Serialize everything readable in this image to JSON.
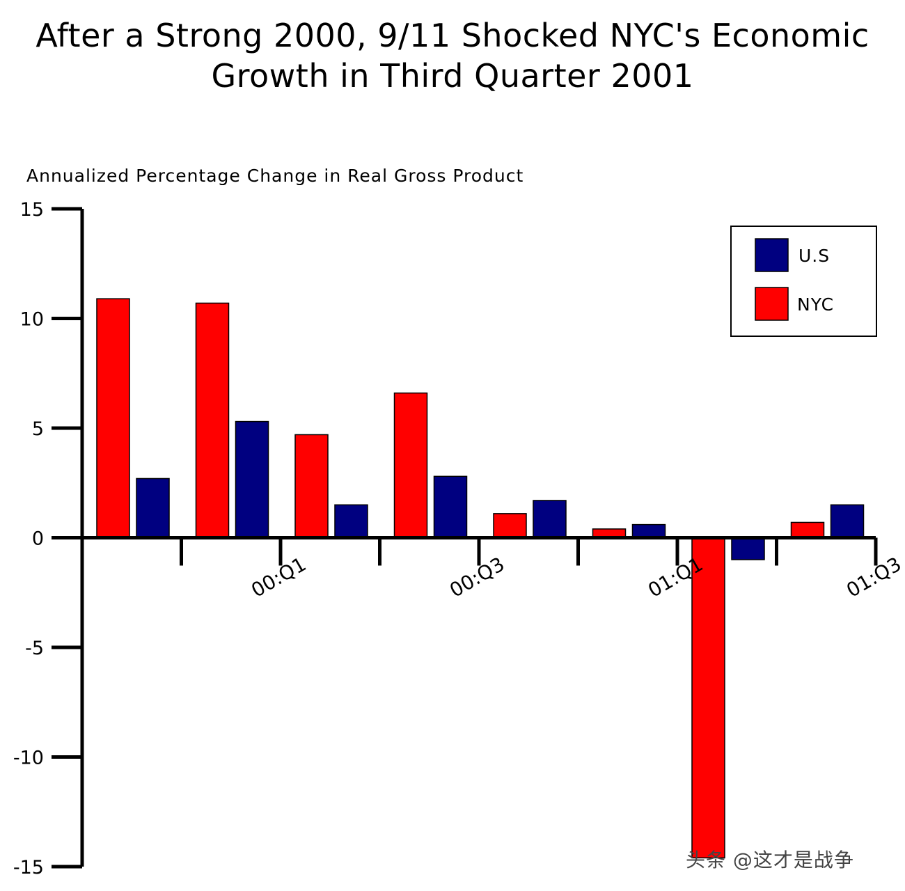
{
  "chart_data": {
    "type": "bar",
    "title": "After a Strong 2000, 9/11 Shocked NYC's Economic Growth in Third Quarter 2001",
    "title_lines": [
      "After a Strong 2000, 9/11 Shocked NYC's Economic",
      "Growth in Third Quarter 2001"
    ],
    "ylabel": "Annualized Percentage Change in Real Gross Product",
    "xlabel": "",
    "ylim": [
      -15,
      15
    ],
    "yticks": [
      15,
      10,
      5,
      0,
      -5,
      -10,
      -15
    ],
    "categories": [
      "",
      "00:Q1",
      "",
      "00:Q3",
      "",
      "01:Q1",
      "",
      "01:Q3"
    ],
    "tick_labels": [
      "00:Q1",
      "00:Q3",
      "01:Q1",
      "01:Q3"
    ],
    "series": [
      {
        "name": "NYC",
        "color": "#ff0000",
        "values": [
          10.9,
          10.7,
          4.7,
          6.6,
          1.1,
          0.4,
          -14.6,
          0.7
        ]
      },
      {
        "name": "U.S",
        "color": "#000080",
        "values": [
          2.7,
          5.3,
          1.5,
          2.8,
          1.7,
          0.6,
          -1.0,
          1.5
        ]
      }
    ],
    "legend": {
      "position": "top-right",
      "entries": [
        "U.S",
        "NYC"
      ]
    }
  },
  "watermark": "头条 @这才是战争"
}
